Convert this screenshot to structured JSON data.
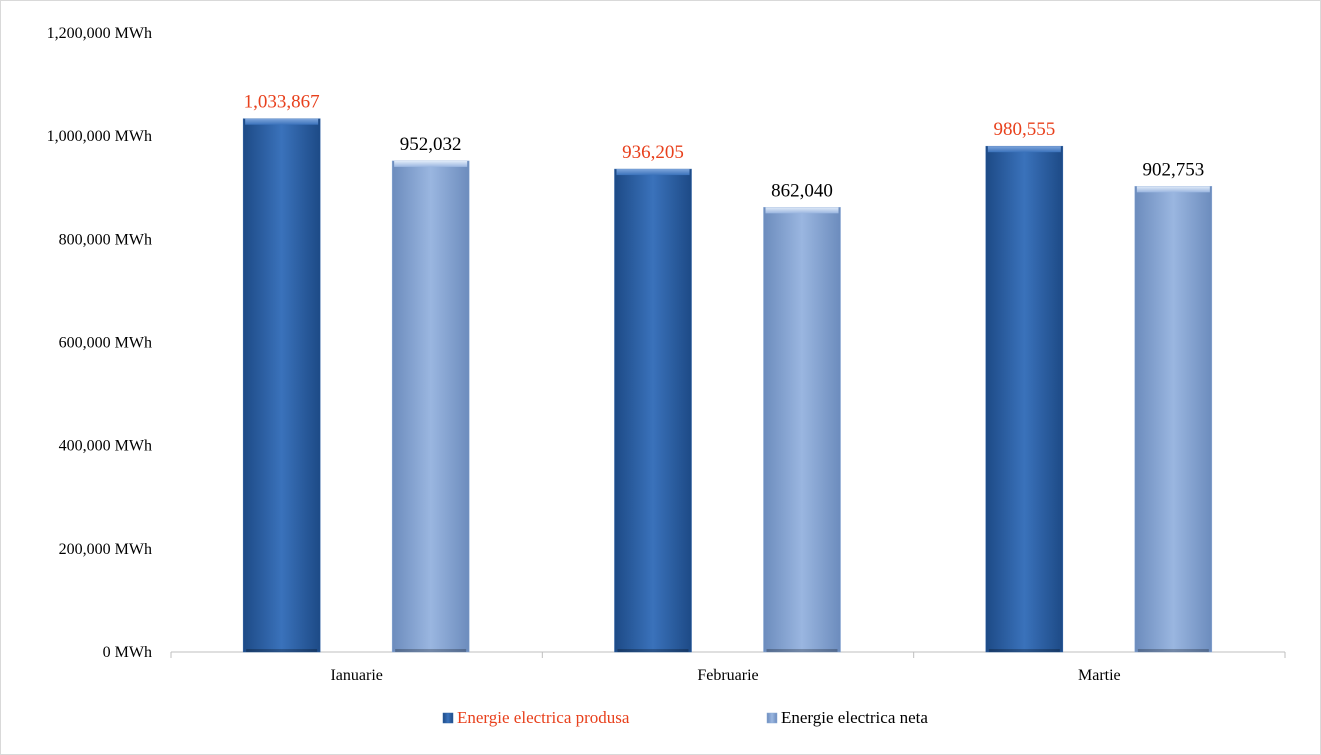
{
  "chart_data": {
    "type": "bar",
    "title": "",
    "xlabel": "",
    "ylabel": "",
    "categories": [
      "Ianuarie",
      "Februarie",
      "Martie"
    ],
    "series": [
      {
        "name": "Energie electrica produsa",
        "values": [
          1033867,
          936205,
          980555
        ],
        "value_labels": [
          "1,033,867",
          "936,205",
          "980,555"
        ],
        "color": "#2f63a6",
        "label_color": "#e8401c"
      },
      {
        "name": "Energie electrica neta",
        "values": [
          952032,
          862040,
          902753
        ],
        "value_labels": [
          "952,032",
          "862,040",
          "902,753"
        ],
        "color": "#8aa9d6",
        "label_color": "#000000"
      }
    ],
    "ylim": [
      0,
      1200000
    ],
    "y_ticks": [
      0,
      200000,
      400000,
      600000,
      800000,
      1000000,
      1200000
    ],
    "y_tick_labels": [
      "0 MWh",
      "200,000 MWh",
      "400,000 MWh",
      "600,000 MWh",
      "800,000 MWh",
      "1,000,000 MWh",
      "1,200,000 MWh"
    ],
    "grid": false,
    "legend_position": "bottom",
    "legend_label_colors": [
      "#e8401c",
      "#000000"
    ]
  }
}
